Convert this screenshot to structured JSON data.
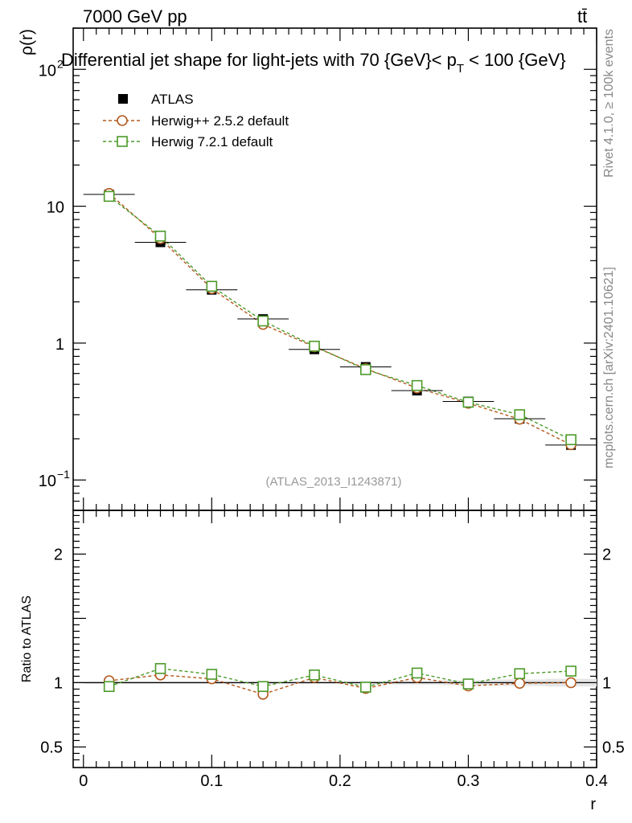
{
  "header": {
    "energy_label": "7000 GeV pp",
    "process_label": "tt̄",
    "rivet_label": "Rivet 4.1.0, ≥ 100k events",
    "mcplots_label": "mcplots.cern.ch [arXiv:2401.10621]"
  },
  "colors": {
    "atlas": "#000000",
    "herwigpp": "#b35a1f",
    "herwig7": "#4d9a2a"
  },
  "chart_data": {
    "type": "line",
    "title": "Differential jet shape for light-jets with 70 {GeV}< p_T < 100 {GeV}",
    "title_parts": {
      "main": "Differential jet shape for light-jets with 70 {GeV}< p",
      "sub": "T",
      "tail": " < 100 {GeV}"
    },
    "analysis_label": "(ATLAS_2013_I1243871)",
    "xlabel": "r",
    "ylabel": "ρ(r)",
    "ratio_ylabel": "Ratio to ATLAS",
    "xlim": [
      -0.008,
      0.4
    ],
    "ylim": [
      0.06,
      200
    ],
    "ratio_ylim": [
      0.34,
      2.34
    ],
    "yscale": "log",
    "x_ticks": [
      {
        "value": 0,
        "label": "0"
      },
      {
        "value": 0.1,
        "label": "0.1"
      },
      {
        "value": 0.2,
        "label": "0.2"
      },
      {
        "value": 0.3,
        "label": "0.3"
      },
      {
        "value": 0.4,
        "label": "0.4"
      }
    ],
    "y_ticks": [
      {
        "value": 0.1,
        "base": "10",
        "exp": "−1"
      },
      {
        "value": 1,
        "base": "1",
        "exp": ""
      },
      {
        "value": 10,
        "base": "10",
        "exp": ""
      },
      {
        "value": 100,
        "base": "10",
        "exp": "2"
      }
    ],
    "ratio_ticks": [
      {
        "value": 0.5,
        "label": "0.5"
      },
      {
        "value": 1,
        "label": "1"
      },
      {
        "value": 2,
        "label": "2"
      }
    ],
    "x": [
      0.02,
      0.06,
      0.1,
      0.14,
      0.18,
      0.22,
      0.26,
      0.3,
      0.34,
      0.38
    ],
    "x_bin_half_width": 0.02,
    "legend_position": "top-left",
    "series": [
      {
        "name": "ATLAS",
        "marker": "filled-square",
        "values": [
          12.2,
          5.45,
          2.45,
          1.5,
          0.9,
          0.67,
          0.45,
          0.375,
          0.28,
          0.18
        ],
        "ratio": [
          1,
          1,
          1,
          1,
          1,
          1,
          1,
          1,
          1,
          1
        ],
        "ratio_band": [
          0.01,
          0.01,
          0.01,
          0.01,
          0.01,
          0.012,
          0.015,
          0.02,
          0.025,
          0.03
        ]
      },
      {
        "name": "Herwig++ 2.5.2 default",
        "marker": "open-circle",
        "values": [
          12.4,
          5.8,
          2.5,
          1.37,
          0.94,
          0.65,
          0.47,
          0.364,
          0.278,
          0.181
        ],
        "ratio": [
          1.015,
          1.06,
          1.03,
          0.91,
          1.04,
          0.955,
          1.04,
          0.975,
          0.995,
          1.0
        ],
        "ratio_err": [
          0.01,
          0.012,
          0.01,
          0.012,
          0.015,
          0.025,
          0.02,
          0.025,
          0.03,
          0.03
        ]
      },
      {
        "name": "Herwig 7.2.1 default",
        "marker": "open-square",
        "values": [
          11.8,
          6.05,
          2.6,
          1.45,
          0.95,
          0.64,
          0.49,
          0.37,
          0.3,
          0.197
        ],
        "ratio": [
          0.97,
          1.11,
          1.065,
          0.97,
          1.06,
          0.965,
          1.075,
          0.99,
          1.07,
          1.09
        ],
        "ratio_err": [
          0.01,
          0.012,
          0.01,
          0.012,
          0.015,
          0.02,
          0.02,
          0.02,
          0.025,
          0.025
        ]
      }
    ]
  }
}
